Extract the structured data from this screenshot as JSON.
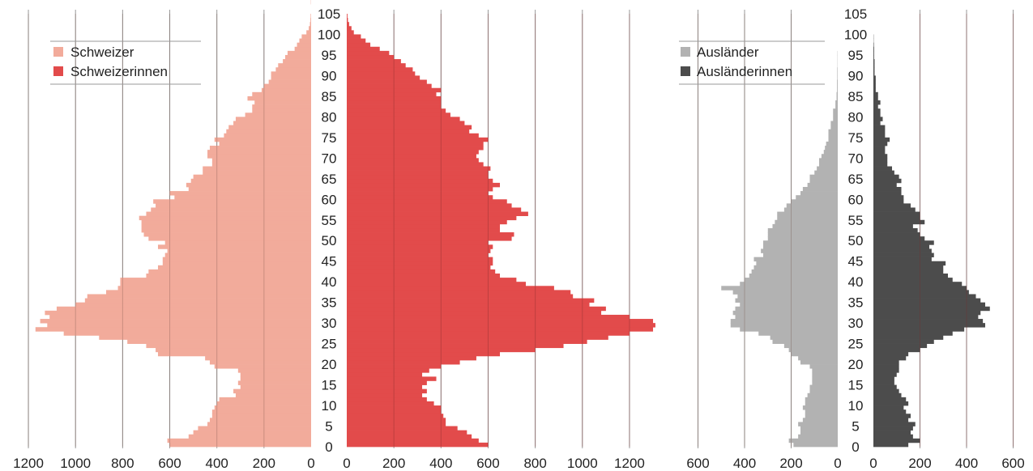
{
  "chart_data": [
    {
      "type": "bar",
      "orientation": "horizontal-pyramid",
      "grid": true,
      "legend_position": "top-left",
      "y_axis": {
        "label": "",
        "ticks": [
          "0",
          "5",
          "10",
          "15",
          "20",
          "25",
          "30",
          "35",
          "40",
          "45",
          "50",
          "55",
          "60",
          "65",
          "70",
          "75",
          "80",
          "85",
          "90",
          "95",
          "100",
          "105"
        ],
        "range": [
          0,
          105
        ]
      },
      "x_left": {
        "label": "",
        "ticks": [
          "1200",
          "1000",
          "800",
          "600",
          "400",
          "200",
          "0"
        ],
        "range": [
          0,
          1200
        ]
      },
      "x_right": {
        "label": "",
        "ticks": [
          "0",
          "200",
          "400",
          "600",
          "800",
          "1000",
          "1200"
        ],
        "range": [
          0,
          1200
        ]
      },
      "series": [
        {
          "name": "Schweizer",
          "color": "#f2ab9b",
          "side": "left",
          "ages": [
            0,
            1,
            2,
            3,
            4,
            5,
            6,
            7,
            8,
            9,
            10,
            11,
            12,
            13,
            14,
            15,
            16,
            17,
            18,
            19,
            20,
            21,
            22,
            23,
            24,
            25,
            26,
            27,
            28,
            29,
            30,
            31,
            32,
            33,
            34,
            35,
            36,
            37,
            38,
            39,
            40,
            41,
            42,
            43,
            44,
            45,
            46,
            47,
            48,
            49,
            50,
            51,
            52,
            53,
            54,
            55,
            56,
            57,
            58,
            59,
            60,
            61,
            62,
            63,
            64,
            65,
            66,
            67,
            68,
            69,
            70,
            71,
            72,
            73,
            74,
            75,
            76,
            77,
            78,
            79,
            80,
            81,
            82,
            83,
            84,
            85,
            86,
            87,
            88,
            89,
            90,
            91,
            92,
            93,
            94,
            95,
            96,
            97,
            98,
            99,
            100,
            101,
            102,
            103,
            104
          ],
          "values": [
            600,
            610,
            520,
            500,
            480,
            440,
            430,
            420,
            420,
            410,
            400,
            390,
            320,
            330,
            300,
            310,
            300,
            300,
            310,
            410,
            430,
            450,
            650,
            660,
            700,
            780,
            900,
            1050,
            1170,
            1120,
            1150,
            1110,
            1130,
            1080,
            1000,
            960,
            950,
            870,
            820,
            810,
            810,
            700,
            690,
            650,
            630,
            630,
            620,
            610,
            650,
            620,
            690,
            710,
            720,
            720,
            720,
            730,
            700,
            680,
            660,
            670,
            580,
            600,
            520,
            530,
            510,
            500,
            460,
            460,
            420,
            420,
            440,
            440,
            430,
            390,
            410,
            370,
            360,
            350,
            330,
            320,
            280,
            250,
            250,
            240,
            270,
            250,
            210,
            200,
            180,
            170,
            170,
            150,
            140,
            120,
            110,
            100,
            70,
            60,
            50,
            40,
            20,
            10,
            5,
            3,
            2,
            1
          ]
        },
        {
          "name": "Schweizerinnen",
          "color": "#e24b4b",
          "side": "right",
          "ages": [
            0,
            1,
            2,
            3,
            4,
            5,
            6,
            7,
            8,
            9,
            10,
            11,
            12,
            13,
            14,
            15,
            16,
            17,
            18,
            19,
            20,
            21,
            22,
            23,
            24,
            25,
            26,
            27,
            28,
            29,
            30,
            31,
            32,
            33,
            34,
            35,
            36,
            37,
            38,
            39,
            40,
            41,
            42,
            43,
            44,
            45,
            46,
            47,
            48,
            49,
            50,
            51,
            52,
            53,
            54,
            55,
            56,
            57,
            58,
            59,
            60,
            61,
            62,
            63,
            64,
            65,
            66,
            67,
            68,
            69,
            70,
            71,
            72,
            73,
            74,
            75,
            76,
            77,
            78,
            79,
            80,
            81,
            82,
            83,
            84,
            85,
            86,
            87,
            88,
            89,
            90,
            91,
            92,
            93,
            94,
            95,
            96,
            97,
            98,
            99,
            100,
            101,
            102,
            103,
            104
          ],
          "values": [
            600,
            560,
            530,
            510,
            470,
            420,
            420,
            410,
            400,
            400,
            370,
            340,
            320,
            340,
            320,
            340,
            380,
            320,
            350,
            400,
            480,
            550,
            650,
            800,
            920,
            1020,
            1110,
            1200,
            1300,
            1310,
            1300,
            1200,
            1080,
            1100,
            1030,
            1050,
            960,
            950,
            880,
            760,
            720,
            650,
            630,
            610,
            620,
            620,
            600,
            610,
            620,
            600,
            700,
            710,
            650,
            650,
            680,
            720,
            770,
            740,
            700,
            680,
            620,
            600,
            620,
            650,
            620,
            600,
            600,
            610,
            580,
            560,
            550,
            560,
            580,
            580,
            600,
            560,
            520,
            530,
            500,
            480,
            440,
            420,
            400,
            400,
            400,
            380,
            400,
            360,
            340,
            310,
            290,
            280,
            250,
            230,
            200,
            180,
            140,
            100,
            80,
            60,
            30,
            20,
            10,
            5,
            3
          ]
        },
        {
          "name": "Ausländer",
          "color": "#b2b2b2",
          "side": "left",
          "ages": [
            0,
            1,
            2,
            3,
            4,
            5,
            6,
            7,
            8,
            9,
            10,
            11,
            12,
            13,
            14,
            15,
            16,
            17,
            18,
            19,
            20,
            21,
            22,
            23,
            24,
            25,
            26,
            27,
            28,
            29,
            30,
            31,
            32,
            33,
            34,
            35,
            36,
            37,
            38,
            39,
            40,
            41,
            42,
            43,
            44,
            45,
            46,
            47,
            48,
            49,
            50,
            51,
            52,
            53,
            54,
            55,
            56,
            57,
            58,
            59,
            60,
            61,
            62,
            63,
            64,
            65,
            66,
            67,
            68,
            69,
            70,
            71,
            72,
            73,
            74,
            75,
            76,
            77,
            78,
            79,
            80,
            81,
            82,
            83,
            84,
            85,
            86,
            87,
            88,
            89,
            90,
            91,
            92,
            93,
            94,
            95,
            96,
            97,
            98,
            99
          ],
          "values": [
            190,
            210,
            170,
            160,
            160,
            170,
            150,
            140,
            140,
            150,
            140,
            140,
            130,
            120,
            120,
            110,
            110,
            110,
            110,
            120,
            160,
            170,
            200,
            210,
            230,
            280,
            290,
            340,
            420,
            460,
            460,
            440,
            450,
            440,
            420,
            440,
            430,
            450,
            500,
            420,
            400,
            380,
            370,
            360,
            350,
            360,
            320,
            330,
            320,
            320,
            300,
            300,
            300,
            280,
            270,
            260,
            260,
            230,
            220,
            200,
            180,
            160,
            150,
            130,
            120,
            120,
            100,
            90,
            80,
            80,
            70,
            60,
            55,
            50,
            40,
            40,
            40,
            30,
            30,
            20,
            20,
            20,
            10,
            10,
            5,
            5,
            3,
            3,
            3,
            2,
            2,
            2,
            1,
            1,
            1,
            1,
            0,
            0,
            0,
            0
          ]
        },
        {
          "name": "Ausländerinnen",
          "color": "#4c4c4c",
          "side": "right",
          "ages": [
            0,
            1,
            2,
            3,
            4,
            5,
            6,
            7,
            8,
            9,
            10,
            11,
            12,
            13,
            14,
            15,
            16,
            17,
            18,
            19,
            20,
            21,
            22,
            23,
            24,
            25,
            26,
            27,
            28,
            29,
            30,
            31,
            32,
            33,
            34,
            35,
            36,
            37,
            38,
            39,
            40,
            41,
            42,
            43,
            44,
            45,
            46,
            47,
            48,
            49,
            50,
            51,
            52,
            53,
            54,
            55,
            56,
            57,
            58,
            59,
            60,
            61,
            62,
            63,
            64,
            65,
            66,
            67,
            68,
            69,
            70,
            71,
            72,
            73,
            74,
            75,
            76,
            77,
            78,
            79,
            80,
            81,
            82,
            83,
            84,
            85,
            86,
            87,
            88,
            89,
            90,
            91,
            92,
            93,
            94,
            95,
            96,
            97,
            98,
            99
          ],
          "values": [
            150,
            200,
            170,
            160,
            170,
            180,
            150,
            160,
            140,
            130,
            150,
            140,
            120,
            110,
            100,
            90,
            90,
            100,
            110,
            110,
            110,
            140,
            150,
            200,
            230,
            260,
            300,
            340,
            390,
            480,
            470,
            450,
            460,
            500,
            480,
            460,
            440,
            410,
            400,
            380,
            340,
            320,
            300,
            300,
            310,
            250,
            260,
            250,
            240,
            260,
            220,
            200,
            190,
            170,
            220,
            200,
            200,
            180,
            160,
            130,
            130,
            120,
            120,
            100,
            120,
            110,
            90,
            80,
            60,
            60,
            60,
            50,
            50,
            60,
            70,
            50,
            50,
            50,
            30,
            40,
            30,
            30,
            20,
            30,
            20,
            20,
            10,
            10,
            10,
            10,
            5,
            5,
            5,
            5,
            3,
            3,
            3,
            2,
            1,
            1
          ]
        }
      ]
    },
    {
      "type": "bar",
      "orientation": "horizontal-pyramid",
      "grid": true,
      "legend_position": "top-left",
      "y_axis": {
        "label": "",
        "ticks": [
          "0",
          "5",
          "10",
          "15",
          "20",
          "25",
          "30",
          "35",
          "40",
          "45",
          "50",
          "55",
          "60",
          "65",
          "70",
          "75",
          "80",
          "85",
          "90",
          "95",
          "100",
          "105"
        ],
        "range": [
          0,
          105
        ]
      },
      "x_left": {
        "label": "",
        "ticks": [
          "600",
          "400",
          "200",
          "0"
        ],
        "range": [
          0,
          600
        ]
      },
      "x_right": {
        "label": "",
        "ticks": [
          "0",
          "200",
          "400",
          "600"
        ],
        "range": [
          0,
          600
        ]
      }
    }
  ]
}
